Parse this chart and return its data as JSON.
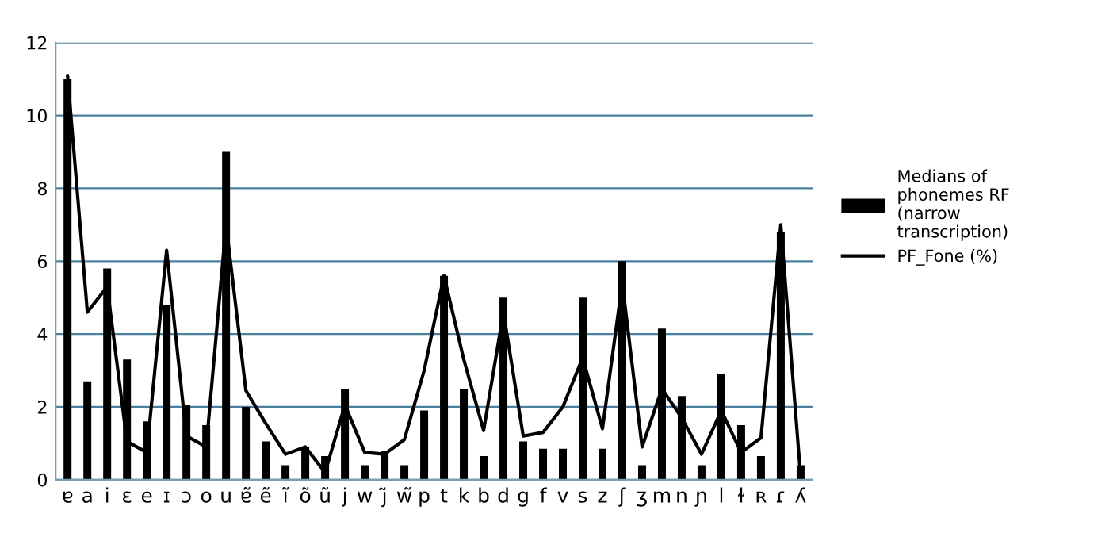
{
  "chart_data": {
    "type": "bar",
    "categories": [
      "ɐ",
      "a",
      "i",
      "ɛ",
      "e",
      "ɪ",
      "ɔ",
      "o",
      "u",
      "ɐ̃",
      "ẽ",
      "ĩ",
      "õ",
      "ũ",
      "j",
      "w",
      "j̃",
      "w̃",
      "p",
      "t",
      "k",
      "b",
      "d",
      "g",
      "f",
      "v",
      "s",
      "z",
      "ʃ",
      "ʒ",
      "m",
      "n",
      "ɲ",
      "l",
      "ɫ",
      "ʀ",
      "ɾ",
      "ʎ"
    ],
    "series": [
      {
        "name": "Medians of phonemes RF (narrow transcription)",
        "color": "#000000",
        "values": [
          11.0,
          2.7,
          5.8,
          3.3,
          1.6,
          4.8,
          2.05,
          1.5,
          9.0,
          2.0,
          1.05,
          0.4,
          0.9,
          0.65,
          2.5,
          0.4,
          0.8,
          0.4,
          1.9,
          5.6,
          2.5,
          0.65,
          5.0,
          1.05,
          0.85,
          0.85,
          5.0,
          0.85,
          6.0,
          0.4,
          4.15,
          2.3,
          0.4,
          2.9,
          1.5,
          0.65,
          6.8,
          0.4
        ]
      },
      {
        "name": "PF_Fone (%)",
        "type": "line",
        "color": "#000000",
        "values": [
          11.1,
          4.6,
          5.3,
          1.05,
          0.75,
          6.3,
          1.2,
          0.9,
          7.0,
          2.45,
          1.55,
          0.7,
          0.9,
          0.2,
          2.05,
          0.75,
          0.7,
          1.1,
          3.0,
          5.6,
          3.3,
          1.35,
          4.6,
          1.2,
          1.3,
          2.0,
          3.35,
          1.4,
          5.4,
          0.9,
          2.5,
          1.7,
          0.7,
          1.9,
          0.75,
          1.15,
          7.0,
          0.1
        ]
      }
    ],
    "ylim": [
      0,
      12
    ],
    "yticks": [
      0,
      2,
      4,
      6,
      8,
      10,
      12
    ],
    "grid": "y",
    "legend": "right",
    "marker": "none",
    "line_style": "solid"
  }
}
